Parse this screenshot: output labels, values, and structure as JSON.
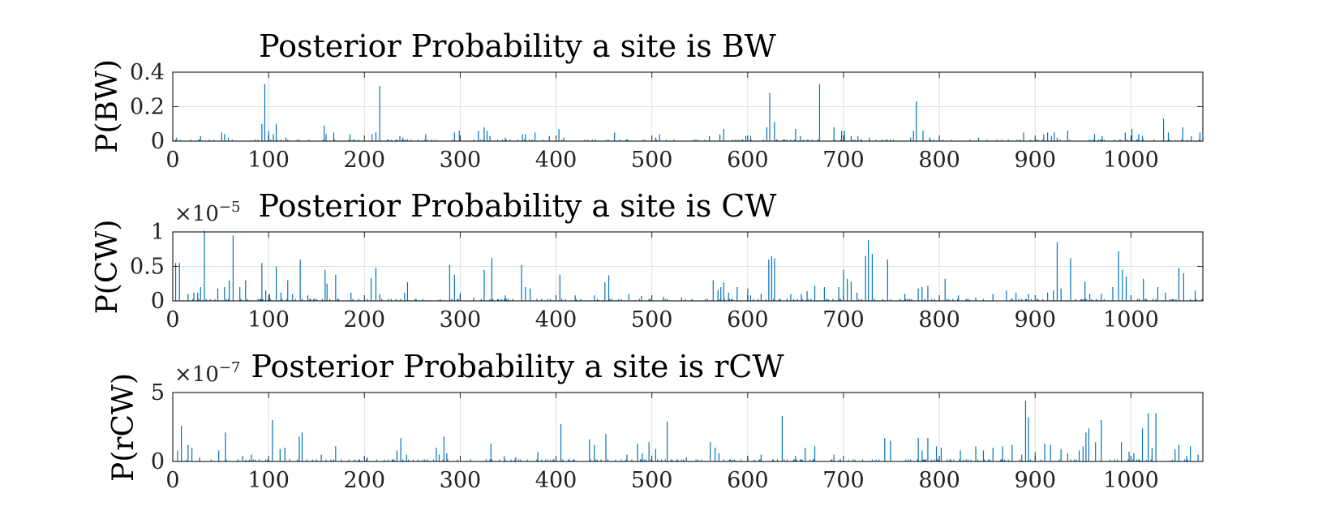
{
  "figure": {
    "series_color": "#0072BD",
    "grid": true
  },
  "chart_data": [
    {
      "type": "line",
      "title": "Posterior Probability a site is BW",
      "ylabel": "P(BW)",
      "multiplier": null,
      "xlim": [
        0,
        1075
      ],
      "ylim": [
        0,
        0.4
      ],
      "xticks": [
        0,
        100,
        200,
        300,
        400,
        500,
        600,
        700,
        800,
        900,
        1000
      ],
      "xtick_labels": [
        "0",
        "100",
        "200",
        "300",
        "400",
        "500",
        "600",
        "700",
        "800",
        "900",
        "1000"
      ],
      "yticks": [
        0,
        0.2,
        0.4
      ],
      "ytick_labels": [
        "0",
        "0.2",
        "0.4"
      ],
      "baseline": 0.003,
      "peaks": [
        [
          4,
          0.02
        ],
        [
          29,
          0.03
        ],
        [
          51,
          0.05
        ],
        [
          54,
          0.04
        ],
        [
          58,
          0.02
        ],
        [
          93,
          0.1
        ],
        [
          96,
          0.33
        ],
        [
          100,
          0.06
        ],
        [
          105,
          0.04
        ],
        [
          108,
          0.1
        ],
        [
          118,
          0.02
        ],
        [
          158,
          0.09
        ],
        [
          160,
          0.04
        ],
        [
          168,
          0.05
        ],
        [
          185,
          0.04
        ],
        [
          208,
          0.04
        ],
        [
          212,
          0.05
        ],
        [
          216,
          0.32
        ],
        [
          237,
          0.03
        ],
        [
          240,
          0.02
        ],
        [
          264,
          0.04
        ],
        [
          294,
          0.05
        ],
        [
          299,
          0.06
        ],
        [
          319,
          0.06
        ],
        [
          325,
          0.08
        ],
        [
          328,
          0.06
        ],
        [
          331,
          0.03
        ],
        [
          347,
          0.02
        ],
        [
          365,
          0.04
        ],
        [
          368,
          0.04
        ],
        [
          378,
          0.05
        ],
        [
          393,
          0.03
        ],
        [
          403,
          0.07
        ],
        [
          408,
          0.02
        ],
        [
          461,
          0.05
        ],
        [
          504,
          0.02
        ],
        [
          508,
          0.04
        ],
        [
          560,
          0.03
        ],
        [
          571,
          0.04
        ],
        [
          575,
          0.07
        ],
        [
          598,
          0.03
        ],
        [
          603,
          0.03
        ],
        [
          620,
          0.08
        ],
        [
          623,
          0.28
        ],
        [
          628,
          0.11
        ],
        [
          650,
          0.07
        ],
        [
          655,
          0.03
        ],
        [
          675,
          0.33
        ],
        [
          690,
          0.08
        ],
        [
          698,
          0.06
        ],
        [
          701,
          0.06
        ],
        [
          708,
          0.03
        ],
        [
          715,
          0.03
        ],
        [
          727,
          0.02
        ],
        [
          770,
          0.02
        ],
        [
          773,
          0.06
        ],
        [
          776,
          0.23
        ],
        [
          783,
          0.06
        ],
        [
          790,
          0.02
        ],
        [
          841,
          0.02
        ],
        [
          888,
          0.05
        ],
        [
          909,
          0.04
        ],
        [
          913,
          0.05
        ],
        [
          917,
          0.03
        ],
        [
          920,
          0.05
        ],
        [
          923,
          0.02
        ],
        [
          934,
          0.06
        ],
        [
          962,
          0.04
        ],
        [
          970,
          0.03
        ],
        [
          994,
          0.05
        ],
        [
          1001,
          0.07
        ],
        [
          1008,
          0.04
        ],
        [
          1012,
          0.03
        ],
        [
          1034,
          0.13
        ],
        [
          1039,
          0.05
        ],
        [
          1054,
          0.08
        ],
        [
          1063,
          0.03
        ],
        [
          1072,
          0.05
        ]
      ]
    },
    {
      "type": "line",
      "title": "Posterior Probability a site is CW",
      "ylabel": "P(CW)",
      "multiplier": {
        "base": "×10",
        "exponent": "−5"
      },
      "xlim": [
        0,
        1075
      ],
      "ylim": [
        0,
        1.0
      ],
      "xticks": [
        0,
        100,
        200,
        300,
        400,
        500,
        600,
        700,
        800,
        900,
        1000
      ],
      "xtick_labels": [
        "0",
        "100",
        "200",
        "300",
        "400",
        "500",
        "600",
        "700",
        "800",
        "900",
        "1000"
      ],
      "yticks": [
        0,
        0.5,
        1
      ],
      "ytick_labels": [
        "0",
        "0.5",
        "1"
      ],
      "baseline": 0.01,
      "peaks": [
        [
          3,
          0.55
        ],
        [
          7,
          0.55
        ],
        [
          16,
          0.1
        ],
        [
          22,
          0.12
        ],
        [
          26,
          0.12
        ],
        [
          29,
          0.2
        ],
        [
          33,
          1.02
        ],
        [
          47,
          0.18
        ],
        [
          54,
          0.2
        ],
        [
          59,
          0.3
        ],
        [
          63,
          0.95
        ],
        [
          70,
          0.2
        ],
        [
          76,
          0.3
        ],
        [
          93,
          0.55
        ],
        [
          97,
          0.15
        ],
        [
          101,
          0.1
        ],
        [
          108,
          0.5
        ],
        [
          113,
          0.12
        ],
        [
          120,
          0.3
        ],
        [
          125,
          0.1
        ],
        [
          133,
          0.6
        ],
        [
          141,
          0.08
        ],
        [
          159,
          0.45
        ],
        [
          161,
          0.25
        ],
        [
          170,
          0.38
        ],
        [
          186,
          0.12
        ],
        [
          207,
          0.33
        ],
        [
          212,
          0.48
        ],
        [
          216,
          0.1
        ],
        [
          242,
          0.12
        ],
        [
          245,
          0.27
        ],
        [
          289,
          0.52
        ],
        [
          294,
          0.38
        ],
        [
          300,
          0.12
        ],
        [
          314,
          0.05
        ],
        [
          325,
          0.45
        ],
        [
          333,
          0.62
        ],
        [
          347,
          0.08
        ],
        [
          364,
          0.52
        ],
        [
          368,
          0.2
        ],
        [
          373,
          0.18
        ],
        [
          404,
          0.38
        ],
        [
          420,
          0.08
        ],
        [
          440,
          0.08
        ],
        [
          451,
          0.27
        ],
        [
          455,
          0.37
        ],
        [
          476,
          0.1
        ],
        [
          489,
          0.07
        ],
        [
          512,
          0.06
        ],
        [
          531,
          0.05
        ],
        [
          564,
          0.3
        ],
        [
          569,
          0.16
        ],
        [
          572,
          0.2
        ],
        [
          575,
          0.27
        ],
        [
          580,
          0.12
        ],
        [
          589,
          0.2
        ],
        [
          600,
          0.18
        ],
        [
          603,
          0.08
        ],
        [
          614,
          0.1
        ],
        [
          622,
          0.6
        ],
        [
          625,
          0.65
        ],
        [
          628,
          0.62
        ],
        [
          645,
          0.1
        ],
        [
          656,
          0.1
        ],
        [
          662,
          0.14
        ],
        [
          670,
          0.22
        ],
        [
          680,
          0.2
        ],
        [
          695,
          0.2
        ],
        [
          700,
          0.45
        ],
        [
          704,
          0.32
        ],
        [
          708,
          0.28
        ],
        [
          714,
          0.12
        ],
        [
          723,
          0.65
        ],
        [
          726,
          0.88
        ],
        [
          730,
          0.68
        ],
        [
          746,
          0.6
        ],
        [
          764,
          0.1
        ],
        [
          778,
          0.18
        ],
        [
          782,
          0.2
        ],
        [
          788,
          0.22
        ],
        [
          806,
          0.32
        ],
        [
          820,
          0.08
        ],
        [
          838,
          0.05
        ],
        [
          856,
          0.1
        ],
        [
          870,
          0.15
        ],
        [
          880,
          0.12
        ],
        [
          893,
          0.1
        ],
        [
          913,
          0.12
        ],
        [
          919,
          0.15
        ],
        [
          923,
          0.85
        ],
        [
          927,
          0.18
        ],
        [
          937,
          0.62
        ],
        [
          952,
          0.28
        ],
        [
          957,
          0.1
        ],
        [
          969,
          0.1
        ],
        [
          981,
          0.2
        ],
        [
          987,
          0.72
        ],
        [
          991,
          0.45
        ],
        [
          995,
          0.35
        ],
        [
          1013,
          0.32
        ],
        [
          1028,
          0.2
        ],
        [
          1036,
          0.12
        ],
        [
          1050,
          0.48
        ],
        [
          1055,
          0.4
        ],
        [
          1067,
          0.15
        ]
      ]
    },
    {
      "type": "line",
      "title": "Posterior Probability a site is rCW",
      "ylabel": "P(rCW)",
      "multiplier": {
        "base": "×10",
        "exponent": "−7"
      },
      "xlim": [
        0,
        1075
      ],
      "ylim": [
        0,
        5
      ],
      "xticks": [
        0,
        100,
        200,
        300,
        400,
        500,
        600,
        700,
        800,
        900,
        1000
      ],
      "xtick_labels": [
        "0",
        "100",
        "200",
        "300",
        "400",
        "500",
        "600",
        "700",
        "800",
        "900",
        "1000"
      ],
      "yticks": [
        0,
        5
      ],
      "ytick_labels": [
        "0",
        "5"
      ],
      "baseline": 0.05,
      "peaks": [
        [
          5,
          0.8
        ],
        [
          9,
          2.6
        ],
        [
          16,
          1.2
        ],
        [
          20,
          1.0
        ],
        [
          28,
          0.3
        ],
        [
          48,
          0.8
        ],
        [
          55,
          2.1
        ],
        [
          73,
          0.4
        ],
        [
          82,
          0.5
        ],
        [
          104,
          3.0
        ],
        [
          112,
          0.9
        ],
        [
          117,
          1.0
        ],
        [
          132,
          1.8
        ],
        [
          135,
          2.1
        ],
        [
          155,
          0.5
        ],
        [
          170,
          1.1
        ],
        [
          203,
          0.3
        ],
        [
          234,
          0.8
        ],
        [
          238,
          1.7
        ],
        [
          244,
          0.5
        ],
        [
          275,
          1.0
        ],
        [
          278,
          0.5
        ],
        [
          283,
          1.8
        ],
        [
          286,
          0.6
        ],
        [
          332,
          1.3
        ],
        [
          346,
          0.4
        ],
        [
          358,
          0.3
        ],
        [
          381,
          0.7
        ],
        [
          405,
          2.7
        ],
        [
          435,
          1.6
        ],
        [
          440,
          1.2
        ],
        [
          452,
          2.0
        ],
        [
          474,
          0.5
        ],
        [
          485,
          1.3
        ],
        [
          490,
          0.6
        ],
        [
          497,
          1.4
        ],
        [
          504,
          0.9
        ],
        [
          516,
          2.9
        ],
        [
          536,
          0.3
        ],
        [
          561,
          1.4
        ],
        [
          566,
          1.0
        ],
        [
          570,
          0.6
        ],
        [
          600,
          0.4
        ],
        [
          614,
          0.5
        ],
        [
          636,
          3.3
        ],
        [
          650,
          0.4
        ],
        [
          660,
          1.0
        ],
        [
          670,
          1.1
        ],
        [
          690,
          0.5
        ],
        [
          743,
          1.7
        ],
        [
          749,
          1.5
        ],
        [
          778,
          1.7
        ],
        [
          782,
          0.8
        ],
        [
          788,
          1.7
        ],
        [
          797,
          1.1
        ],
        [
          802,
          1.0
        ],
        [
          822,
          0.8
        ],
        [
          838,
          1.1
        ],
        [
          846,
          0.8
        ],
        [
          856,
          1.0
        ],
        [
          866,
          1.1
        ],
        [
          876,
          1.2
        ],
        [
          886,
          0.5
        ],
        [
          890,
          4.4
        ],
        [
          893,
          3.2
        ],
        [
          900,
          0.7
        ],
        [
          910,
          1.3
        ],
        [
          916,
          1.2
        ],
        [
          927,
          0.9
        ],
        [
          934,
          0.6
        ],
        [
          946,
          0.8
        ],
        [
          950,
          1.1
        ],
        [
          953,
          2.1
        ],
        [
          956,
          2.4
        ],
        [
          963,
          1.4
        ],
        [
          969,
          3.0
        ],
        [
          990,
          1.4
        ],
        [
          998,
          0.7
        ],
        [
          1003,
          0.6
        ],
        [
          1012,
          2.4
        ],
        [
          1018,
          3.5
        ],
        [
          1022,
          1.0
        ],
        [
          1026,
          3.5
        ],
        [
          1046,
          0.9
        ],
        [
          1050,
          1.2
        ],
        [
          1058,
          0.4
        ],
        [
          1062,
          1.1
        ],
        [
          1070,
          0.5
        ]
      ]
    }
  ]
}
